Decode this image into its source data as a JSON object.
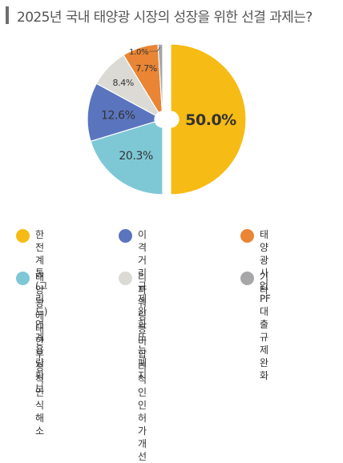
{
  "title": "2025년 국내 태양광 시장의 성장을 위한 선결 과제는?",
  "chart_data": {
    "type": "pie",
    "slices": [
      {
        "label": "한전 계통(그리드)\n연계 용량 확보",
        "value": 50.0,
        "display": "50.0%",
        "color": "#f6bb14"
      },
      {
        "label": "이격거리 규제 완화\n또는 폐지",
        "value": 12.6,
        "display": "12.6%",
        "color": "#5a74be"
      },
      {
        "label": "태양광 사업\nPF대출 규제 완화",
        "value": 7.7,
        "display": "7.7%",
        "color": "#e98534"
      },
      {
        "label": "태양광에 대한\n부정적 인식\n해소",
        "value": 20.3,
        "display": "20.3%",
        "color": "#7ec8d6"
      },
      {
        "label": "리파워링 등\n비합리적인 인허가\n개선",
        "value": 8.4,
        "display": "8.4%",
        "color": "#dcdad4"
      },
      {
        "label": "기타",
        "value": 1.0,
        "display": "1.0%",
        "color": "#a6a6a8"
      }
    ],
    "exploded_slice": "한전 계통(그리드)\n연계 용량 확보",
    "legend_position": "bottom"
  }
}
